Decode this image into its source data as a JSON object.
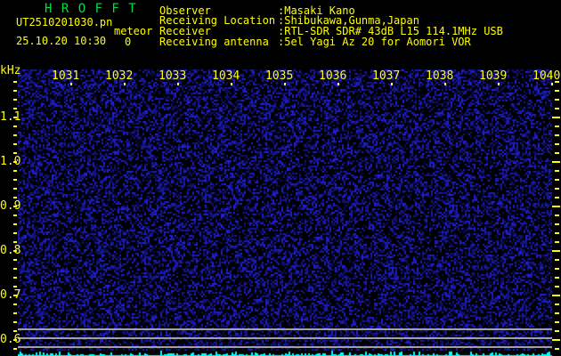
{
  "app": {
    "title": "H R O F F T"
  },
  "file": {
    "name": "UT2510201030.pn",
    "mode": "meteor",
    "datetime": "25.10.20 10:30",
    "count": "0"
  },
  "info": {
    "observer_label": "Observer",
    "observer": ":Masaki Kano",
    "location_label": "Receiving Location",
    "location": ":Shibukawa,Gunma,Japan",
    "receiver_label": "Receiver",
    "receiver": ":RTL-SDR SDR# 43dB L15 114.1MHz USB",
    "antenna_label": "Receiving antenna",
    "antenna": ":5el Yagi Az 20 for Aomori VOR"
  },
  "axis": {
    "y_unit": "kHz",
    "y_labels": [
      "1.1",
      "1.0",
      "0.9",
      "0.8",
      "0.7",
      "0.6"
    ],
    "x_labels": [
      "1031",
      "1032",
      "1033",
      "1034",
      "1035",
      "1036",
      "1037",
      "1038",
      "1039",
      "1040"
    ]
  },
  "colors": {
    "text": "#ffff00",
    "title": "#00dd44",
    "noise": "#2222cc",
    "signal": "#00ffff",
    "grid": "#a0a0a0"
  }
}
